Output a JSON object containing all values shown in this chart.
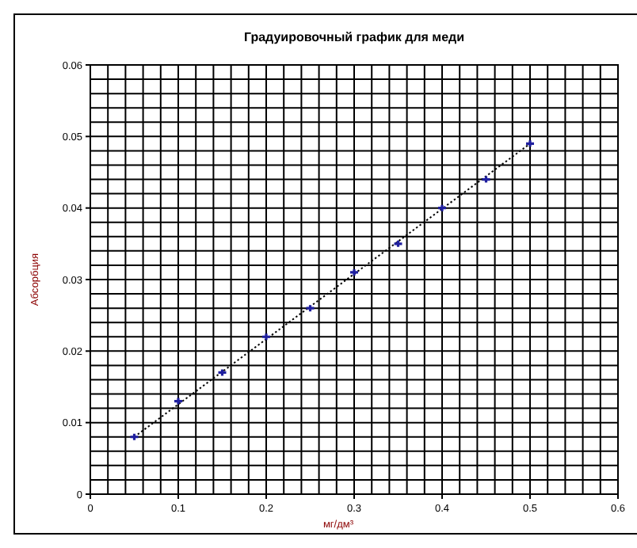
{
  "chart_data": {
    "type": "scatter",
    "title": "Градуировочный график для меди",
    "xlabel": "мг/дм³",
    "ylabel": "Абсорбция",
    "xlim": [
      0,
      0.6
    ],
    "ylim": [
      0,
      0.06
    ],
    "xticks": [
      0,
      {
        "value": 0.02,
        "label": null
      },
      {
        "value": 0.04,
        "label": null
      },
      {
        "value": 0.06,
        "label": null
      },
      {
        "value": 0.08,
        "label": null
      },
      0.1,
      {
        "value": 0.12,
        "label": null
      },
      {
        "value": 0.14,
        "label": null
      },
      {
        "value": 0.16,
        "label": null
      },
      {
        "value": 0.18,
        "label": null
      },
      0.2,
      {
        "value": 0.22,
        "label": null
      },
      {
        "value": 0.24,
        "label": null
      },
      {
        "value": 0.26,
        "label": null
      },
      {
        "value": 0.28,
        "label": null
      },
      0.3,
      {
        "value": 0.32,
        "label": null
      },
      {
        "value": 0.34,
        "label": null
      },
      {
        "value": 0.36,
        "label": null
      },
      {
        "value": 0.38,
        "label": null
      },
      0.4,
      {
        "value": 0.42,
        "label": null
      },
      {
        "value": 0.44,
        "label": null
      },
      {
        "value": 0.46,
        "label": null
      },
      {
        "value": 0.48,
        "label": null
      },
      0.5,
      {
        "value": 0.52,
        "label": null
      },
      {
        "value": 0.54,
        "label": null
      },
      {
        "value": 0.56,
        "label": null
      },
      {
        "value": 0.58,
        "label": null
      },
      0.6
    ],
    "yticks": [
      0,
      {
        "value": 0.002,
        "label": null
      },
      {
        "value": 0.004,
        "label": null
      },
      {
        "value": 0.006,
        "label": null
      },
      {
        "value": 0.008,
        "label": null
      },
      0.01,
      {
        "value": 0.012,
        "label": null
      },
      {
        "value": 0.014,
        "label": null
      },
      {
        "value": 0.016,
        "label": null
      },
      {
        "value": 0.018,
        "label": null
      },
      0.02,
      {
        "value": 0.022,
        "label": null
      },
      {
        "value": 0.024,
        "label": null
      },
      {
        "value": 0.026,
        "label": null
      },
      {
        "value": 0.028,
        "label": null
      },
      0.03,
      {
        "value": 0.032,
        "label": null
      },
      {
        "value": 0.034,
        "label": null
      },
      {
        "value": 0.036,
        "label": null
      },
      {
        "value": 0.038,
        "label": null
      },
      0.04,
      {
        "value": 0.042,
        "label": null
      },
      {
        "value": 0.044,
        "label": null
      },
      {
        "value": 0.046,
        "label": null
      },
      {
        "value": 0.048,
        "label": null
      },
      0.05,
      {
        "value": 0.052,
        "label": null
      },
      {
        "value": 0.054,
        "label": null
      },
      {
        "value": 0.056,
        "label": null
      },
      {
        "value": 0.058,
        "label": null
      },
      0.06
    ],
    "grid": true,
    "legend": false,
    "marker": "cross",
    "series": [
      {
        "color": "#1f1f9f",
        "x": [
          0.05,
          0.1,
          0.15,
          0.2,
          0.25,
          0.3,
          0.35,
          0.4,
          0.45,
          0.5
        ],
        "values": [
          0.008,
          0.013,
          0.017,
          0.022,
          0.026,
          0.031,
          0.035,
          0.04,
          0.044,
          0.049
        ]
      },
      {
        "type": "line",
        "color": "#000000",
        "line_style": "dotted",
        "marker": "none",
        "x": [
          0.05,
          0.5
        ],
        "values": [
          0.008,
          0.049
        ]
      }
    ]
  }
}
